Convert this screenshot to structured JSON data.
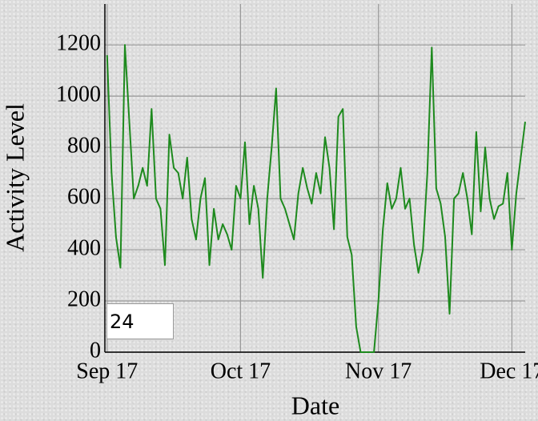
{
  "chart_data": {
    "type": "line",
    "x_label": "Date",
    "y_label": "Activity Level",
    "roll_period": 24,
    "x": [
      0,
      1,
      2,
      3,
      4,
      5,
      6,
      7,
      8,
      9,
      10,
      11,
      12,
      13,
      14,
      15,
      16,
      17,
      18,
      19,
      20,
      21,
      22,
      23,
      24,
      25,
      26,
      27,
      28,
      29,
      30,
      31,
      32,
      33,
      34,
      35,
      36,
      37,
      38,
      39,
      40,
      41,
      42,
      43,
      44,
      45,
      46,
      47,
      48,
      49,
      50,
      51,
      52,
      53,
      54,
      55,
      56,
      57,
      58,
      59,
      60,
      61,
      62,
      63,
      64,
      65,
      66,
      67,
      68,
      69,
      70,
      71,
      72,
      73,
      74,
      75,
      76,
      77,
      78,
      79,
      80,
      81,
      82,
      83,
      84,
      85,
      86,
      87,
      88,
      89,
      90,
      91,
      92,
      93,
      94
    ],
    "series": [
      {
        "name": "Activity Level",
        "color": "#1e8a1e",
        "values": [
          1160,
          700,
          450,
          330,
          1200,
          900,
          600,
          650,
          720,
          650,
          950,
          600,
          560,
          340,
          850,
          720,
          700,
          600,
          760,
          520,
          440,
          600,
          680,
          340,
          560,
          440,
          500,
          460,
          400,
          650,
          600,
          820,
          500,
          650,
          560,
          290,
          600,
          800,
          1030,
          600,
          560,
          500,
          440,
          620,
          720,
          640,
          580,
          700,
          620,
          840,
          720,
          480,
          920,
          950,
          450,
          380,
          100,
          0,
          0,
          0,
          0,
          200,
          480,
          660,
          560,
          600,
          720,
          560,
          600,
          420,
          310,
          400,
          700,
          1190,
          640,
          580,
          450,
          150,
          600,
          620,
          700,
          600,
          460,
          860,
          550,
          800,
          600,
          520,
          570,
          580,
          700,
          400,
          620,
          760,
          900
        ]
      }
    ],
    "xlim": [
      -0.5,
      94
    ],
    "ylim": [
      0,
      1360
    ],
    "xticks": [
      {
        "value": 0,
        "label": "Sep 17"
      },
      {
        "value": 30,
        "label": "Oct 17"
      },
      {
        "value": 61,
        "label": "Nov 17"
      },
      {
        "value": 91,
        "label": "Dec 17"
      }
    ],
    "yticks": [
      0,
      200,
      400,
      600,
      800,
      1000,
      1200
    ],
    "grid": true
  }
}
